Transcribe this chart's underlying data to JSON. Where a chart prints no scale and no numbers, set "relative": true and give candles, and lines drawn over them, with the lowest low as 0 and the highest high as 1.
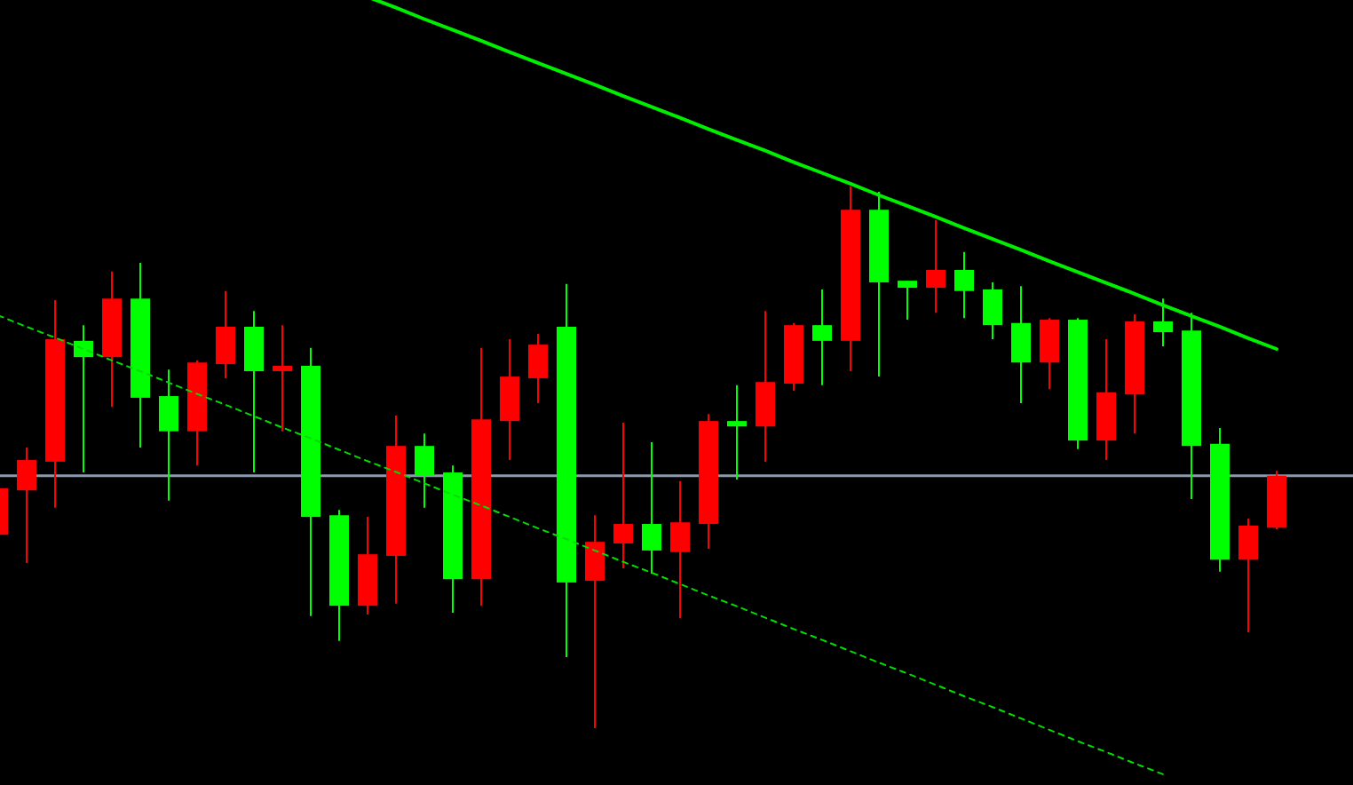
{
  "chart_data": {
    "type": "candlestick",
    "relative": true,
    "categories": [
      null,
      null,
      null,
      null,
      null,
      null,
      null,
      null,
      null,
      null,
      null,
      null,
      null,
      null,
      null,
      null,
      null,
      null,
      null,
      null,
      null,
      null,
      null,
      null,
      null,
      null,
      null,
      null,
      null,
      null,
      null,
      null,
      null,
      null,
      null,
      null,
      null,
      null,
      null,
      null,
      null,
      null,
      null,
      null,
      null,
      null
    ],
    "ohlc": [
      [
        0.357,
        0.443,
        0.357,
        0.443
      ],
      [
        0.439,
        0.518,
        0.305,
        0.495
      ],
      [
        0.492,
        0.79,
        0.407,
        0.718
      ],
      [
        0.715,
        0.744,
        0.472,
        0.685
      ],
      [
        0.685,
        0.843,
        0.593,
        0.793
      ],
      [
        0.793,
        0.859,
        0.518,
        0.61
      ],
      [
        0.613,
        0.662,
        0.42,
        0.548
      ],
      [
        0.548,
        0.679,
        0.485,
        0.675
      ],
      [
        0.672,
        0.807,
        0.646,
        0.741
      ],
      [
        0.741,
        0.77,
        0.472,
        0.659
      ],
      [
        0.659,
        0.744,
        0.548,
        0.669
      ],
      [
        0.669,
        0.702,
        0.207,
        0.39
      ],
      [
        0.393,
        0.403,
        0.161,
        0.226
      ],
      [
        0.226,
        0.39,
        0.21,
        0.321
      ],
      [
        0.318,
        0.577,
        0.23,
        0.521
      ],
      [
        0.521,
        0.544,
        0.407,
        0.466
      ],
      [
        0.472,
        0.485,
        0.213,
        0.275
      ],
      [
        0.275,
        0.702,
        0.226,
        0.57
      ],
      [
        0.567,
        0.718,
        0.495,
        0.649
      ],
      [
        0.646,
        0.728,
        0.6,
        0.708
      ],
      [
        0.741,
        0.82,
        0.131,
        0.269
      ],
      [
        0.272,
        0.393,
        0,
        0.344
      ],
      [
        0.341,
        0.564,
        0.295,
        0.377
      ],
      [
        0.377,
        0.528,
        0.285,
        0.328
      ],
      [
        0.325,
        0.456,
        0.203,
        0.38
      ],
      [
        0.377,
        0.58,
        0.331,
        0.567
      ],
      [
        0.567,
        0.633,
        0.459,
        0.557
      ],
      [
        0.557,
        0.77,
        0.492,
        0.639
      ],
      [
        0.636,
        0.748,
        0.623,
        0.744
      ],
      [
        0.744,
        0.81,
        0.633,
        0.715
      ],
      [
        0.715,
        1,
        0.659,
        0.957
      ],
      [
        0.957,
        0.99,
        0.649,
        0.823
      ],
      [
        0.826,
        0.826,
        0.754,
        0.813
      ],
      [
        0.813,
        0.938,
        0.767,
        0.846
      ],
      [
        0.846,
        0.879,
        0.757,
        0.807
      ],
      [
        0.81,
        0.823,
        0.718,
        0.744
      ],
      [
        0.748,
        0.816,
        0.6,
        0.675
      ],
      [
        0.675,
        0.757,
        0.626,
        0.754
      ],
      [
        0.754,
        0.757,
        0.515,
        0.531
      ],
      [
        0.531,
        0.718,
        0.495,
        0.62
      ],
      [
        0.616,
        0.764,
        0.544,
        0.751
      ],
      [
        0.751,
        0.793,
        0.705,
        0.731
      ],
      [
        0.734,
        0.767,
        0.423,
        0.521
      ],
      [
        0.525,
        0.554,
        0.289,
        0.311
      ],
      [
        0.311,
        0.387,
        0.177,
        0.374
      ],
      [
        0.37,
        0.475,
        0.367,
        0.466
      ]
    ],
    "colors": [
      "#ff0000",
      "#ff0000",
      "#ff0000",
      "#00ff00",
      "#ff0000",
      "#00ff00",
      "#00ff00",
      "#ff0000",
      "#ff0000",
      "#00ff00",
      "#ff0000",
      "#00ff00",
      "#00ff00",
      "#ff0000",
      "#ff0000",
      "#00ff00",
      "#00ff00",
      "#ff0000",
      "#ff0000",
      "#ff0000",
      "#00ff00",
      "#ff0000",
      "#ff0000",
      "#00ff00",
      "#ff0000",
      "#ff0000",
      "#00ff00",
      "#ff0000",
      "#ff0000",
      "#00ff00",
      "#ff0000",
      "#00ff00",
      "#00ff00",
      "#ff0000",
      "#00ff00",
      "#00ff00",
      "#00ff00",
      "#ff0000",
      "#00ff00",
      "#ff0000",
      "#ff0000",
      "#00ff00",
      "#00ff00",
      "#00ff00",
      "#ff0000",
      "#ff0000"
    ],
    "series": [
      {
        "type": "line",
        "color": "#00ee00",
        "line_style": "solid",
        "values": [
          null,
          null,
          null,
          null,
          null,
          null,
          null,
          null,
          null,
          null,
          null,
          null,
          null,
          1.35,
          1.33,
          1.309,
          1.289,
          1.269,
          1.248,
          1.228,
          1.208,
          1.188,
          1.167,
          1.147,
          1.127,
          1.106,
          1.086,
          1.066,
          1.045,
          1.025,
          1.005,
          0.984,
          0.964,
          0.944,
          0.923,
          0.903,
          0.883,
          0.862,
          0.842,
          0.822,
          0.802,
          0.781,
          0.761,
          0.741,
          0.72,
          0.7
        ]
      },
      {
        "type": "line",
        "color": "#00dd00",
        "line_style": "dotted",
        "values": [
          0.762,
          0.741,
          0.721,
          0.7,
          0.679,
          0.659,
          0.638,
          0.617,
          0.597,
          0.576,
          0.555,
          0.535,
          0.514,
          0.493,
          0.473,
          0.452,
          0.431,
          0.411,
          0.39,
          0.369,
          0.349,
          0.328,
          0.307,
          0.287,
          0.266,
          0.245,
          0.225,
          0.204,
          0.183,
          0.163,
          0.142,
          0.121,
          0.101,
          0.08,
          0.059,
          0.039,
          0.018,
          -0.003,
          -0.024,
          -0.044,
          -0.065,
          -0.085,
          null,
          null,
          null,
          null
        ]
      }
    ],
    "ref_lines": [
      {
        "axis": "y",
        "value": 0.466,
        "color": "#8c9bab"
      }
    ]
  }
}
